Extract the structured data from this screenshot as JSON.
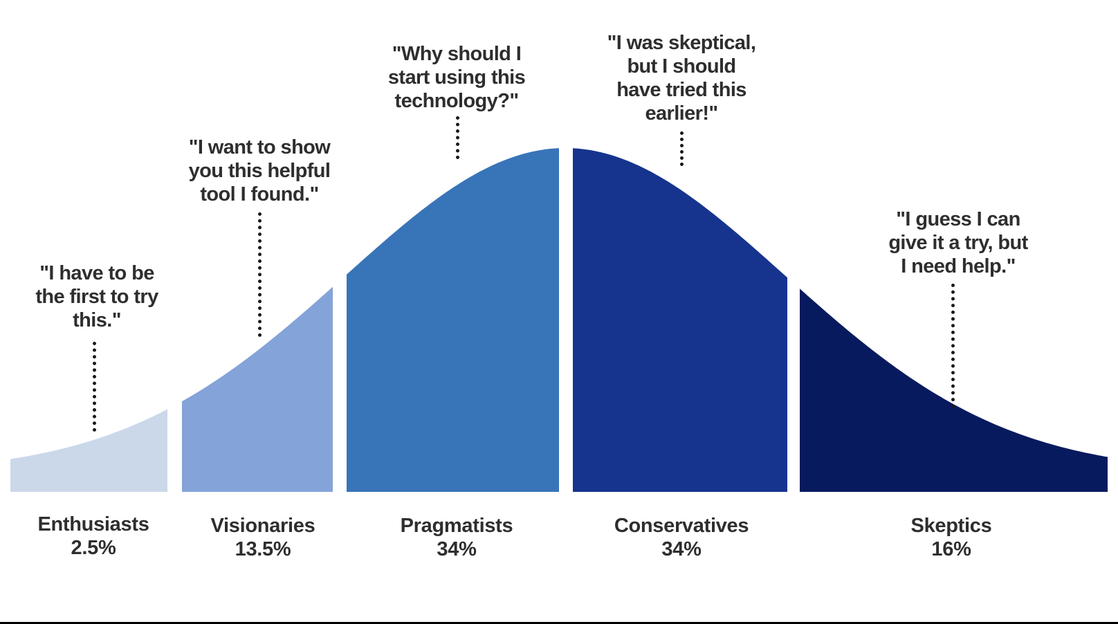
{
  "segments": [
    {
      "id": "enthusiasts",
      "label": "Enthusiasts",
      "percent": "2.5%",
      "share": 2.5,
      "color": "#cbd8ea",
      "quote": "\"I have to be\nthe first to try\nthis.\""
    },
    {
      "id": "visionaries",
      "label": "Visionaries",
      "percent": "13.5%",
      "share": 13.5,
      "color": "#84a3d8",
      "quote": "\"I want to show\nyou this helpful\ntool I found.\""
    },
    {
      "id": "pragmatists",
      "label": "Pragmatists",
      "percent": "34%",
      "share": 34,
      "color": "#3874b8",
      "quote": "\"Why should I\nstart using this\ntechnology?\""
    },
    {
      "id": "conservatives",
      "label": "Conservatives",
      "percent": "34%",
      "share": 34,
      "color": "#16348e",
      "quote": "\"I was skeptical,\nbut I should\nhave tried this\nearlier!\""
    },
    {
      "id": "skeptics",
      "label": "Skeptics",
      "percent": "16%",
      "share": 16,
      "color": "#081a5e",
      "quote": "\"I guess I can\ngive it a try, but\nI need help.\""
    }
  ]
}
